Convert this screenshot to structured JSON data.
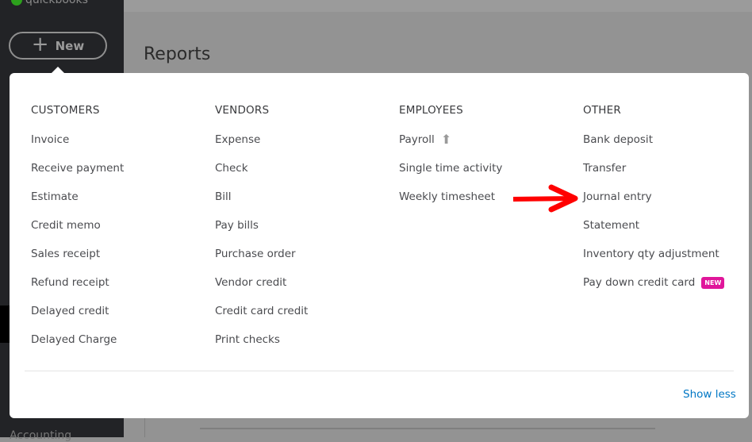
{
  "sidebar": {
    "brand": "quickbooks",
    "new_label": "New",
    "bottom_item": "Accounting"
  },
  "main": {
    "title": "Reports"
  },
  "menu": {
    "columns": [
      {
        "header": "CUSTOMERS",
        "items": [
          "Invoice",
          "Receive payment",
          "Estimate",
          "Credit memo",
          "Sales receipt",
          "Refund receipt",
          "Delayed credit",
          "Delayed Charge"
        ]
      },
      {
        "header": "VENDORS",
        "items": [
          "Expense",
          "Check",
          "Bill",
          "Pay bills",
          "Purchase order",
          "Vendor credit",
          "Credit card credit",
          "Print checks"
        ]
      },
      {
        "header": "EMPLOYEES",
        "items": [
          "Payroll",
          "Single time activity",
          "Weekly timesheet"
        ]
      },
      {
        "header": "OTHER",
        "items": [
          "Bank deposit",
          "Transfer",
          "Journal entry",
          "Statement",
          "Inventory qty adjustment",
          "Pay down credit card"
        ]
      }
    ],
    "new_badge": "NEW",
    "show_less": "Show less"
  },
  "colors": {
    "accent": "#0077c5",
    "badge": "#e0169a",
    "annotation": "#ff0000"
  }
}
